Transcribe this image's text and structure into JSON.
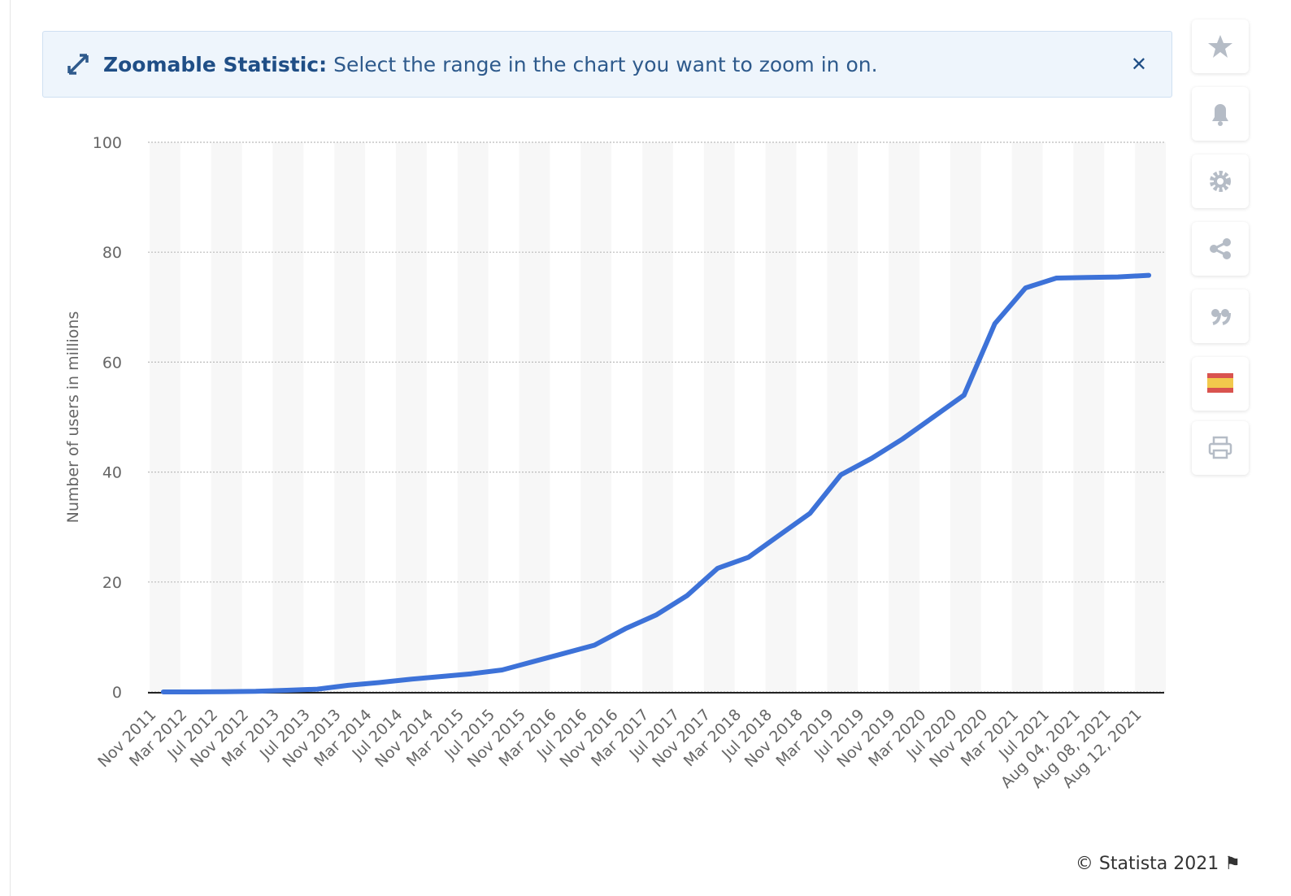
{
  "banner": {
    "title": "Zoomable Statistic:",
    "message": "Select the range in the chart you want to zoom in on."
  },
  "chart_data": {
    "type": "line",
    "y_label": "Number of users in millions",
    "categories": [
      "Nov 2011",
      "Mar 2012",
      "Jul 2012",
      "Nov 2012",
      "Mar 2013",
      "Jul 2013",
      "Nov 2013",
      "Mar 2014",
      "Jul 2014",
      "Nov 2014",
      "Mar 2015",
      "Jul 2015",
      "Nov 2015",
      "Mar 2016",
      "Jul 2016",
      "Nov 2016",
      "Mar 2017",
      "Jul 2017",
      "Nov 2017",
      "Mar 2018",
      "Jul 2018",
      "Nov 2018",
      "Mar 2019",
      "Jul 2019",
      "Nov 2019",
      "Mar 2020",
      "Jul 2020",
      "Nov 2020",
      "Mar 2021",
      "Jul 2021",
      "Aug 04, 2021",
      "Aug 08, 2021",
      "Aug 12, 2021"
    ],
    "values": [
      0,
      0,
      0.05,
      0.1,
      0.3,
      0.5,
      1.2,
      1.7,
      2.3,
      2.8,
      3.3,
      4.0,
      5.5,
      7.0,
      8.5,
      11.5,
      14.0,
      17.5,
      22.5,
      24.5,
      28.5,
      32.5,
      39.5,
      42.5,
      46,
      50,
      54,
      67,
      73.5,
      75.3,
      75.4,
      75.5,
      75.8
    ],
    "color": "#3d72d8",
    "ylim": [
      0,
      100
    ],
    "yticks": [
      0,
      20,
      40,
      60,
      80,
      100
    ],
    "grid": true
  },
  "footer": "© Statista 2021"
}
